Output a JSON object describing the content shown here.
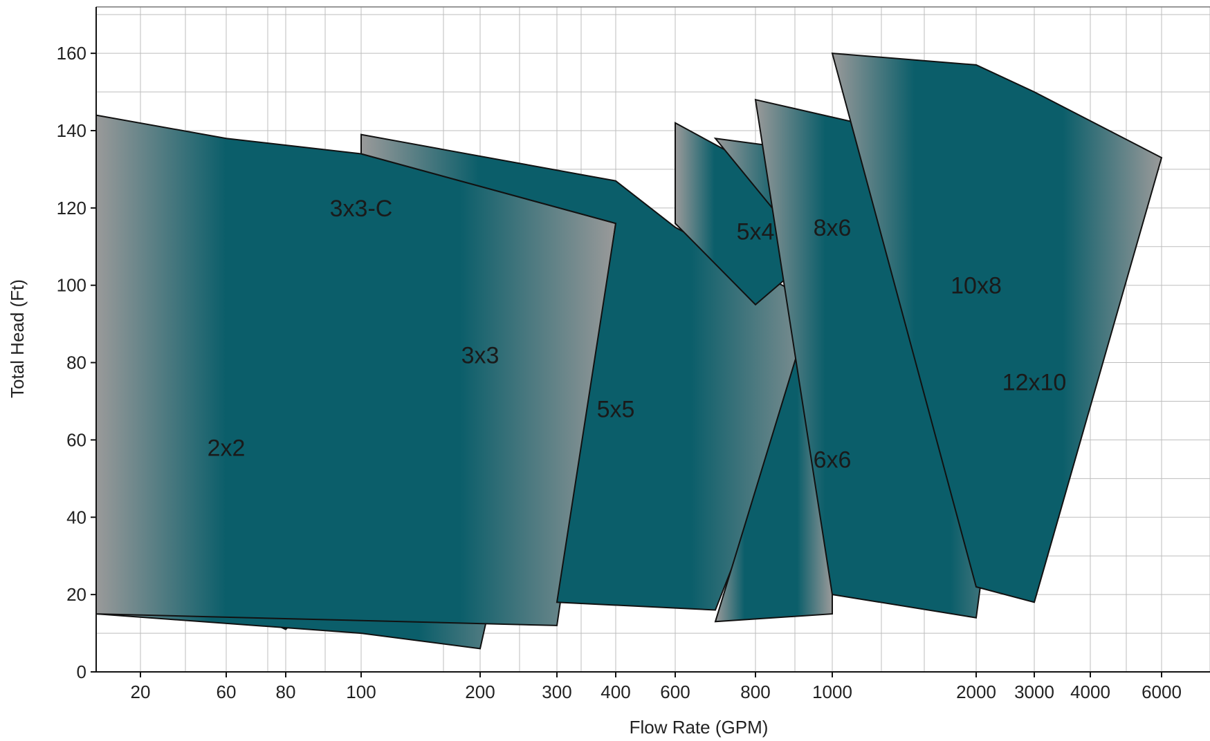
{
  "chart_data": {
    "type": "area",
    "title": "",
    "xlabel": "Flow Rate (GPM)",
    "ylabel": "Total Head (Ft)",
    "ylim": [
      0,
      172
    ],
    "y_ticks": [
      0,
      20,
      40,
      60,
      80,
      100,
      120,
      140,
      160
    ],
    "x_tick_labels": [
      "20",
      "60",
      "80",
      "100",
      "200",
      "300",
      "400",
      "600",
      "800",
      "1000",
      "2000",
      "3000",
      "4000",
      "6000"
    ],
    "grid": true,
    "colors": {
      "teal": "#0b5e6a",
      "gray": "#9a9a9a",
      "grid": "#bdbdbd",
      "outline": "#111111"
    },
    "series": [
      {
        "name": "2x2",
        "label_at": [
          60,
          58
        ],
        "outline": [
          [
            0,
            111
          ],
          [
            60,
            104
          ],
          [
            120,
            93
          ],
          [
            200,
            61
          ],
          [
            80,
            11
          ],
          [
            60,
            18
          ],
          [
            40,
            23
          ],
          [
            0,
            25
          ]
        ]
      },
      {
        "name": "3x3",
        "label_at": [
          200,
          82
        ],
        "outline": [
          [
            0,
            116
          ],
          [
            100,
            109
          ],
          [
            300,
            95
          ],
          [
            200,
            6
          ],
          [
            100,
            10
          ],
          [
            0,
            15
          ]
        ]
      },
      {
        "name": "3x3-C",
        "label_at": [
          100,
          120
        ],
        "outline": [
          [
            0,
            144
          ],
          [
            60,
            138
          ],
          [
            100,
            134
          ],
          [
            400,
            116
          ],
          [
            300,
            12
          ],
          [
            0,
            15
          ]
        ]
      },
      {
        "name": "5x5",
        "label_at": [
          400,
          68
        ],
        "outline": [
          [
            100,
            139
          ],
          [
            400,
            127
          ],
          [
            600,
            115
          ],
          [
            1000,
            93
          ],
          [
            700,
            16
          ],
          [
            300,
            18
          ],
          [
            400,
            116
          ],
          [
            100,
            134
          ]
        ]
      },
      {
        "name": "5x4",
        "label_at": [
          800,
          114
        ],
        "outline": [
          [
            600,
            142
          ],
          [
            1000,
            120
          ],
          [
            1000,
            112
          ],
          [
            800,
            95
          ],
          [
            600,
            116
          ]
        ]
      },
      {
        "name": "6x6",
        "label_at": [
          1000,
          55
        ],
        "outline": [
          [
            1000,
            112
          ],
          [
            1000,
            101
          ],
          [
            1000,
            85
          ],
          [
            1000,
            15
          ],
          [
            700,
            13
          ]
        ]
      },
      {
        "name": "8x6",
        "label_at": [
          1000,
          115
        ],
        "outline": [
          [
            700,
            138
          ],
          [
            1000,
            134
          ],
          [
            2000,
            124
          ],
          [
            1000,
            20
          ],
          [
            1000,
            90
          ],
          [
            1000,
            101
          ]
        ]
      },
      {
        "name": "10x8",
        "label_at": [
          2000,
          100
        ],
        "outline": [
          [
            800,
            148
          ],
          [
            2000,
            135
          ],
          [
            3000,
            127
          ],
          [
            2000,
            14
          ],
          [
            1000,
            20
          ]
        ]
      },
      {
        "name": "12x10",
        "label_at": [
          3000,
          75
        ],
        "outline": [
          [
            1000,
            160
          ],
          [
            2000,
            157
          ],
          [
            3000,
            150
          ],
          [
            6000,
            133
          ],
          [
            3000,
            18
          ],
          [
            2000,
            22
          ]
        ]
      }
    ]
  }
}
